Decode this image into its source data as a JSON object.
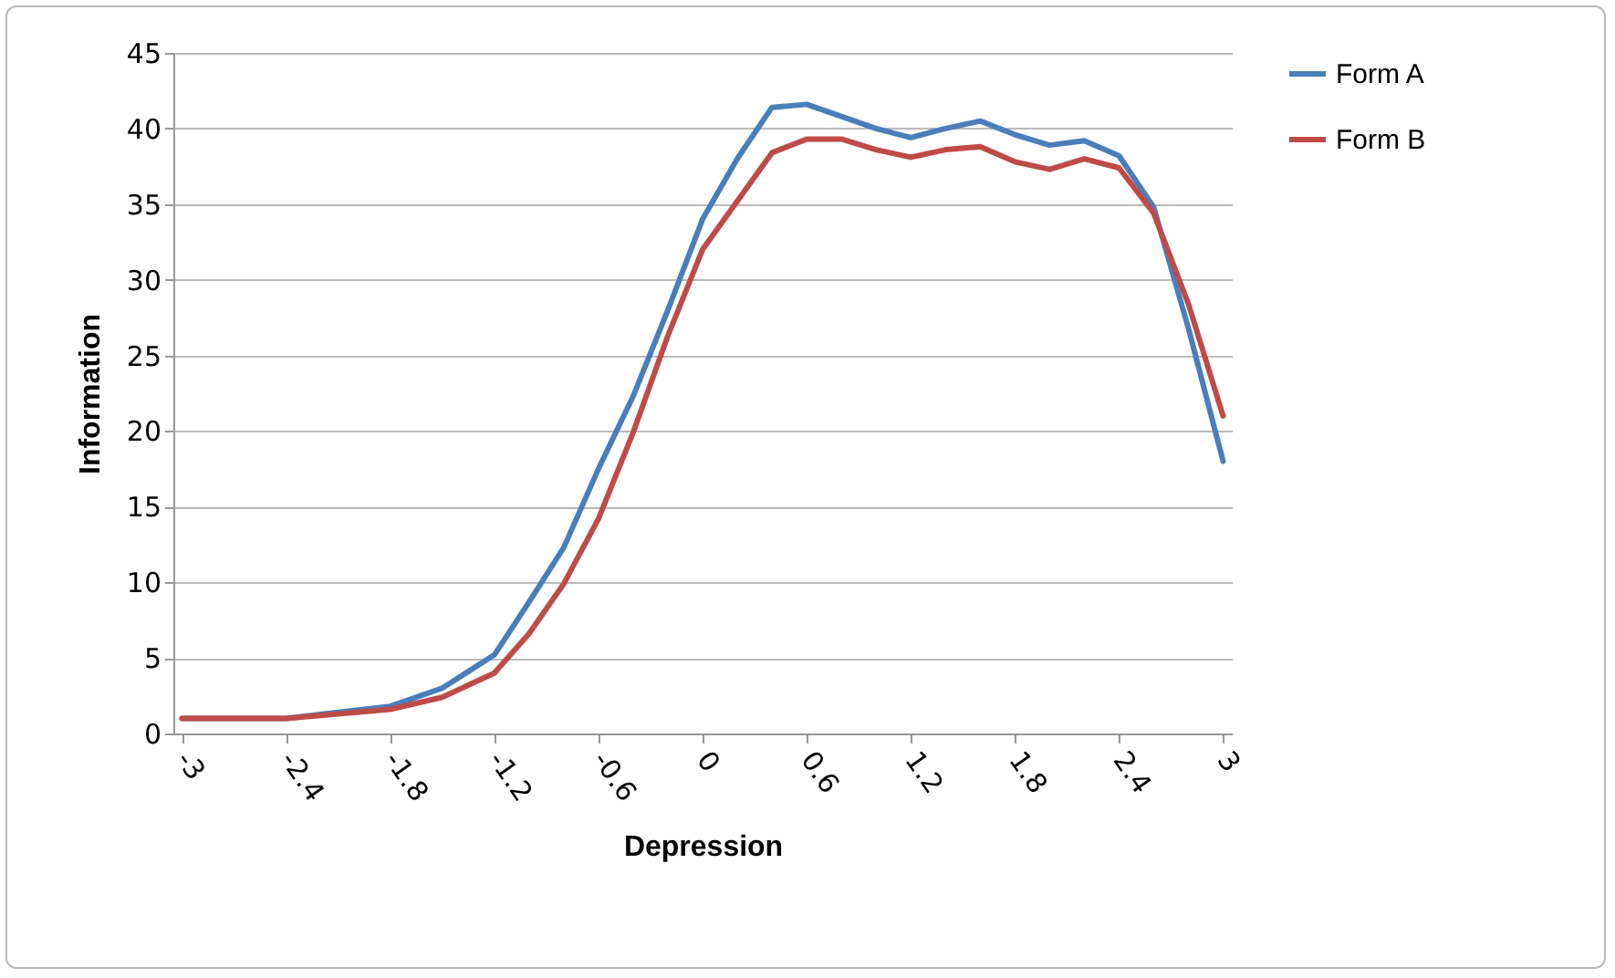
{
  "chart_data": {
    "type": "line",
    "xlabel": "Depression",
    "ylabel": "Information",
    "xlim": [
      -3.05,
      3.05
    ],
    "xticks": [
      -3,
      -2.4,
      -1.8,
      -1.2,
      -0.6,
      0,
      0.6,
      1.2,
      1.8,
      2.4,
      3
    ],
    "ylim": [
      0,
      45
    ],
    "yticks": [
      0,
      5,
      10,
      15,
      20,
      25,
      30,
      35,
      40,
      45
    ],
    "grid": "y",
    "legend": "right",
    "marker": "none",
    "line_style": "solid",
    "x": [
      -3,
      -2.4,
      -2.1,
      -1.8,
      -1.5,
      -1.2,
      -1,
      -0.8,
      -0.6,
      -0.4,
      -0.2,
      0,
      0.2,
      0.4,
      0.6,
      0.8,
      1,
      1.2,
      1.4,
      1.6,
      1.8,
      2,
      2.2,
      2.4,
      2.6,
      2.8,
      3
    ],
    "series": [
      {
        "name": "Form A",
        "color": "#4a7ebb",
        "values": [
          1,
          1,
          1.4,
          1.8,
          3,
          5.2,
          8.7,
          12.3,
          17.5,
          22.3,
          28,
          34,
          38,
          41.4,
          41.6,
          40.8,
          40,
          39.4,
          40,
          40.5,
          39.6,
          38.9,
          39.2,
          38.2,
          34.8,
          26.8,
          18
        ]
      },
      {
        "name": "Form B",
        "color": "#be4b48",
        "values": [
          1,
          1,
          1.3,
          1.6,
          2.4,
          4,
          6.6,
          9.9,
          14.2,
          19.9,
          26.3,
          32,
          35.2,
          38.4,
          39.3,
          39.3,
          38.6,
          38.1,
          38.6,
          38.8,
          37.8,
          37.3,
          38,
          37.4,
          34.4,
          28.4,
          21
        ]
      }
    ]
  }
}
